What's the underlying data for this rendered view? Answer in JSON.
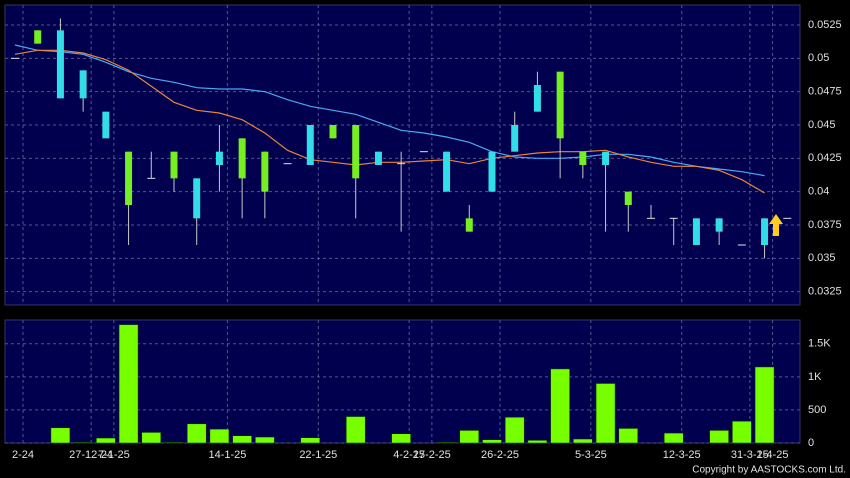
{
  "chart_data": [
    {
      "type": "candlestick",
      "categories": [
        "2-24",
        null,
        null,
        "27-12-24",
        "7-1-25",
        null,
        null,
        null,
        null,
        "14-1-25",
        null,
        null,
        null,
        "22-1-25",
        null,
        null,
        null,
        "4-2-25",
        "17-2-25",
        null,
        null,
        "26-2-25",
        null,
        null,
        null,
        "5-3-25",
        null,
        null,
        null,
        "12-3-25",
        null,
        null,
        "31-3-25",
        "1-4-25",
        null
      ],
      "open": [
        0.05,
        0.0511,
        0.0521,
        0.0491,
        0.046,
        0.039,
        0.041,
        0.041,
        0.041,
        0.043,
        0.041,
        0.04,
        0.0421,
        0.045,
        0.044,
        0.041,
        0.043,
        0.0421,
        0.043,
        0.043,
        0.037,
        0.043,
        0.045,
        0.048,
        0.044,
        0.042,
        0.043,
        0.039,
        0.038,
        0.038,
        0.038,
        0.038,
        0.036,
        0.038,
        0.038
      ],
      "high": [
        0.05,
        0.0521,
        0.053,
        0.0491,
        0.046,
        0.043,
        0.043,
        0.043,
        0.041,
        0.045,
        0.044,
        0.043,
        0.0421,
        0.045,
        0.045,
        0.045,
        0.043,
        0.043,
        0.043,
        0.043,
        0.039,
        0.043,
        0.046,
        0.049,
        0.049,
        0.043,
        0.043,
        0.04,
        0.039,
        0.038,
        0.038,
        0.038,
        0.036,
        0.038,
        0.038
      ],
      "low": [
        0.05,
        0.0511,
        0.047,
        0.046,
        0.044,
        0.036,
        0.041,
        0.04,
        0.036,
        0.04,
        0.038,
        0.038,
        0.0421,
        0.042,
        0.044,
        0.038,
        0.042,
        0.037,
        0.043,
        0.04,
        0.037,
        0.04,
        0.043,
        0.046,
        0.041,
        0.041,
        0.037,
        0.037,
        0.038,
        0.036,
        0.036,
        0.036,
        0.036,
        0.035,
        0.038
      ],
      "close": [
        0.05,
        0.0521,
        0.047,
        0.047,
        0.044,
        0.043,
        0.041,
        0.043,
        0.038,
        0.042,
        0.044,
        0.043,
        0.0421,
        0.042,
        0.045,
        0.045,
        0.042,
        0.0421,
        0.043,
        0.04,
        0.038,
        0.04,
        0.043,
        0.046,
        0.049,
        0.043,
        0.042,
        0.04,
        0.038,
        0.038,
        0.036,
        0.037,
        0.036,
        0.036,
        0.038
      ],
      "up_color": "#77ee22",
      "down_color": "#33dde8",
      "series": [
        {
          "color": "#4aaaf0",
          "values": [
            0.051,
            0.0506,
            0.0505,
            0.0503,
            0.0497,
            0.049,
            0.0485,
            0.0482,
            0.0478,
            0.0477,
            0.0477,
            0.0475,
            0.0469,
            0.0464,
            0.0461,
            0.0458,
            0.0452,
            0.0446,
            0.0444,
            0.0441,
            0.0437,
            0.043,
            0.0426,
            0.0425,
            0.0425,
            0.0426,
            0.0428,
            0.0428,
            0.0426,
            0.0422,
            0.0419,
            0.0417,
            0.0415,
            0.0412,
            null
          ]
        },
        {
          "color": "#e8843a",
          "values": [
            0.0503,
            0.0506,
            0.0506,
            0.0504,
            0.0499,
            0.0491,
            0.0479,
            0.0467,
            0.0461,
            0.0459,
            0.0454,
            0.0444,
            0.0431,
            0.0424,
            0.0422,
            0.042,
            0.0422,
            0.0422,
            0.0423,
            0.0424,
            0.0421,
            0.0425,
            0.0427,
            0.0429,
            0.043,
            0.043,
            0.0431,
            0.0426,
            0.0422,
            0.0419,
            0.0419,
            0.0416,
            0.0409,
            0.0399,
            null
          ]
        }
      ],
      "ylim": [
        0.0315,
        0.054
      ],
      "yticks": [
        0.0325,
        0.035,
        0.0375,
        0.04,
        0.0425,
        0.045,
        0.0475,
        0.05,
        0.0525
      ],
      "grid": true
    },
    {
      "type": "bar",
      "values": [
        0,
        0,
        230,
        10,
        75,
        1790,
        160,
        10,
        290,
        210,
        110,
        90,
        0,
        80,
        0,
        400,
        0,
        140,
        0,
        10,
        190,
        50,
        390,
        40,
        1120,
        60,
        900,
        220,
        0,
        150,
        0,
        190,
        330,
        1150,
        0
      ],
      "color": "#77ff00",
      "ylim": [
        0,
        1860
      ],
      "yticks": [
        0,
        500,
        {
          "value": 1000,
          "label": "1K"
        },
        {
          "value": 1500,
          "label": "1.5K"
        }
      ],
      "grid": true
    }
  ],
  "copyright": "Copyright by AASTOCKS.com Ltd."
}
